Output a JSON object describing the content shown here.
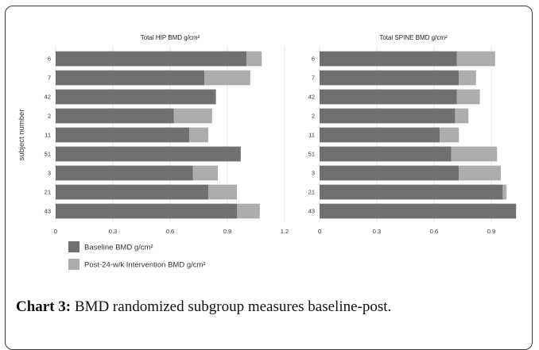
{
  "caption": {
    "label": "Chart 3:",
    "text": " BMD randomized subgroup measures baseline-post."
  },
  "colors": {
    "baseline": "#707070",
    "post": "#adadad",
    "grid": "#e6e6e6"
  },
  "legend": [
    {
      "key": "baseline",
      "label": "Baseline BMD g/cm²"
    },
    {
      "key": "post",
      "label": "Post-24-w/k Intervention BMD g/cm²"
    }
  ],
  "chart_data": [
    {
      "type": "bar",
      "orientation": "horizontal",
      "stacked": true,
      "title": "Total HIP BMD g/cm²",
      "ylabel": "subject number",
      "categories": [
        "6",
        "7",
        "42",
        "2",
        "11",
        "51",
        "3",
        "21",
        "43"
      ],
      "xlim": [
        0,
        1.2
      ],
      "xticks": [
        "0",
        "0.3",
        "0.6",
        "0.9",
        "1.2"
      ],
      "grid": true,
      "series": [
        {
          "name": "Baseline BMD g/cm²",
          "values": [
            1.0,
            0.78,
            0.84,
            0.62,
            0.7,
            0.97,
            0.72,
            0.8,
            0.95
          ]
        },
        {
          "name": "Post-24-w/k Intervention BMD g/cm²",
          "values": [
            0.08,
            0.24,
            0.0,
            0.2,
            0.1,
            0.0,
            0.13,
            0.15,
            0.12
          ]
        }
      ]
    },
    {
      "type": "bar",
      "orientation": "horizontal",
      "stacked": true,
      "title": "Total SPINE BMD g/cm²",
      "categories": [
        "6",
        "7",
        "42",
        "2",
        "11",
        "51",
        "3",
        "21",
        "43"
      ],
      "xlim": [
        0,
        1.2
      ],
      "xticks": [
        "0",
        "0.3",
        "0.6",
        "0.9"
      ],
      "grid": true,
      "series": [
        {
          "name": "Baseline BMD g/cm²",
          "values": [
            0.72,
            0.73,
            0.72,
            0.71,
            0.63,
            0.69,
            0.73,
            0.96,
            1.03
          ]
        },
        {
          "name": "Post-24-w/k Intervention BMD g/cm²",
          "values": [
            0.2,
            0.09,
            0.12,
            0.07,
            0.1,
            0.24,
            0.22,
            0.02,
            0.0
          ]
        }
      ]
    }
  ]
}
